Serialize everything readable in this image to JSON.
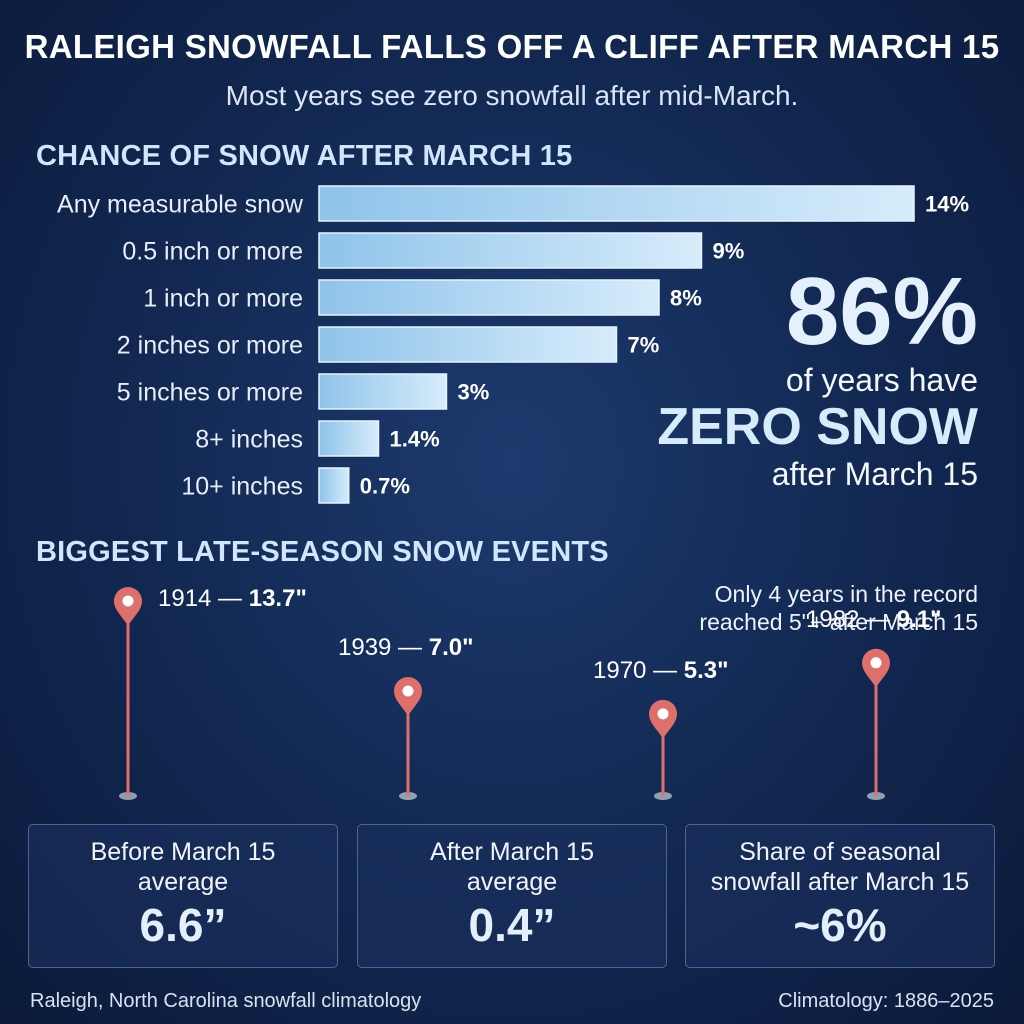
{
  "title": "RALEIGH SNOWFALL FALLS OFF A CLIFF AFTER MARCH 15",
  "subtitle": "Most years see zero snowfall after mid-March.",
  "chart_data": [
    {
      "type": "bar",
      "orientation": "horizontal",
      "title": "CHANCE OF SNOW AFTER MARCH 15",
      "categories": [
        "Any measurable snow",
        "0.5 inch or more",
        "1 inch or more",
        "2 inches or more",
        "5 inches or more",
        "8+ inches",
        "10+ inches"
      ],
      "values": [
        14,
        9,
        8,
        7,
        3,
        1.4,
        0.7
      ],
      "value_labels": [
        "14%",
        "9%",
        "8%",
        "7%",
        "3%",
        "1.4%",
        "0.7%"
      ],
      "unit": "%",
      "xlim": [
        0,
        14
      ]
    },
    {
      "type": "scatter",
      "title": "BIGGEST LATE-SEASON SNOW EVENTS",
      "x": [
        1914,
        1939,
        1970,
        1982
      ],
      "y": [
        13.7,
        7.0,
        5.3,
        9.1
      ],
      "point_labels": [
        {
          "year": "1914",
          "amount": "13.7\""
        },
        {
          "year": "1939",
          "amount": "7.0\""
        },
        {
          "year": "1970",
          "amount": "5.3\""
        },
        {
          "year": "1982",
          "amount": "9.1\""
        }
      ],
      "annotation": [
        "Only 4 years in the record",
        "reached 5\"+ after March 15"
      ],
      "ylim": [
        0,
        14
      ]
    }
  ],
  "callout": {
    "percent": "86%",
    "line1": "of years have",
    "line2": "ZERO SNOW",
    "line3": "after March 15"
  },
  "stats": [
    {
      "label_line1": "Before March 15",
      "label_line2": "average",
      "value": "6.6”"
    },
    {
      "label_line1": "After March 15",
      "label_line2": "average",
      "value": "0.4”"
    },
    {
      "label_line1": "Share of seasonal",
      "label_line2": "snowfall after March 15",
      "value": "~6%"
    }
  ],
  "footer": {
    "left": "Raleigh, North Carolina snowfall climatology",
    "right": "Climatology: 1886–2025"
  },
  "colors": {
    "bar": "#b7dcf5",
    "marker": "#de6f6a",
    "timeline": "#a9d8f7"
  }
}
